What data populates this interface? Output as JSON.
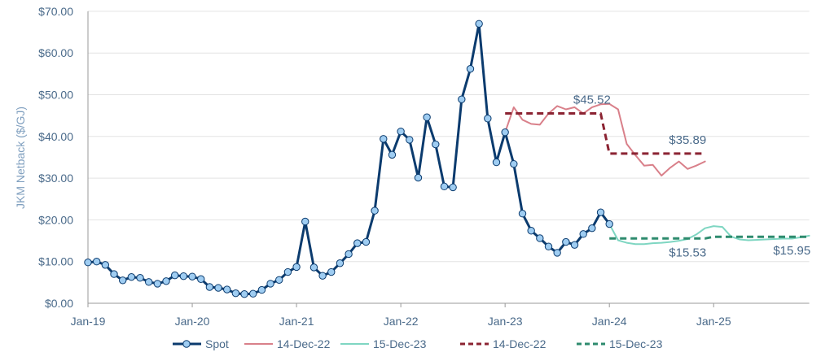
{
  "chart_data": {
    "type": "line",
    "ylabel": "JKM Netback ($/GJ)",
    "ylim": [
      0,
      70
    ],
    "y_ticks": [
      "$0.00",
      "$10.00",
      "$20.00",
      "$30.00",
      "$40.00",
      "$50.00",
      "$60.00",
      "$70.00"
    ],
    "x_ticks": [
      "Jan-19",
      "Jan-20",
      "Jan-21",
      "Jan-22",
      "Jan-23",
      "Jan-24",
      "Jan-25"
    ],
    "x_range": [
      "2019-01",
      "2025-12"
    ],
    "grid": "horizontal",
    "legend_position": "bottom",
    "series": [
      {
        "name": "Spot",
        "color": "#0b3b6e",
        "style": "solid-markers",
        "data": [
          [
            "2019-01",
            9.8
          ],
          [
            "2019-02",
            10.0
          ],
          [
            "2019-03",
            9.2
          ],
          [
            "2019-04",
            7.0
          ],
          [
            "2019-05",
            5.5
          ],
          [
            "2019-06",
            6.3
          ],
          [
            "2019-07",
            6.1
          ],
          [
            "2019-08",
            5.1
          ],
          [
            "2019-09",
            4.7
          ],
          [
            "2019-10",
            5.3
          ],
          [
            "2019-11",
            6.7
          ],
          [
            "2019-12",
            6.5
          ],
          [
            "2020-01",
            6.4
          ],
          [
            "2020-02",
            5.8
          ],
          [
            "2020-03",
            3.9
          ],
          [
            "2020-04",
            3.7
          ],
          [
            "2020-05",
            3.3
          ],
          [
            "2020-06",
            2.4
          ],
          [
            "2020-07",
            2.2
          ],
          [
            "2020-08",
            2.3
          ],
          [
            "2020-09",
            3.2
          ],
          [
            "2020-10",
            4.7
          ],
          [
            "2020-11",
            5.6
          ],
          [
            "2020-12",
            7.5
          ],
          [
            "2021-01",
            8.7
          ],
          [
            "2021-02",
            19.6
          ],
          [
            "2021-03",
            8.6
          ],
          [
            "2021-04",
            6.6
          ],
          [
            "2021-05",
            7.5
          ],
          [
            "2021-06",
            9.6
          ],
          [
            "2021-07",
            11.8
          ],
          [
            "2021-08",
            14.4
          ],
          [
            "2021-09",
            14.7
          ],
          [
            "2021-10",
            22.2
          ],
          [
            "2021-11",
            39.4
          ],
          [
            "2021-12",
            35.6
          ],
          [
            "2022-01",
            41.2
          ],
          [
            "2022-02",
            39.2
          ],
          [
            "2022-03",
            30.1
          ],
          [
            "2022-04",
            44.6
          ],
          [
            "2022-05",
            38.1
          ],
          [
            "2022-06",
            28.0
          ],
          [
            "2022-07",
            27.8
          ],
          [
            "2022-08",
            48.9
          ],
          [
            "2022-09",
            56.2
          ],
          [
            "2022-10",
            67.0
          ],
          [
            "2022-11",
            44.3
          ],
          [
            "2022-12",
            33.8
          ],
          [
            "2023-01",
            41.0
          ],
          [
            "2023-02",
            33.4
          ],
          [
            "2023-03",
            21.5
          ],
          [
            "2023-04",
            17.4
          ],
          [
            "2023-05",
            15.6
          ],
          [
            "2023-06",
            13.6
          ],
          [
            "2023-07",
            12.1
          ],
          [
            "2023-08",
            14.7
          ],
          [
            "2023-09",
            14.0
          ],
          [
            "2023-10",
            16.6
          ],
          [
            "2023-11",
            18.0
          ],
          [
            "2023-12",
            21.8
          ],
          [
            "2024-01",
            19.0
          ]
        ]
      },
      {
        "name": "14-Dec-22",
        "color": "#d9808a",
        "style": "solid",
        "data": [
          [
            "2023-01",
            41.0
          ],
          [
            "2023-02",
            47.0
          ],
          [
            "2023-03",
            44.0
          ],
          [
            "2023-04",
            43.0
          ],
          [
            "2023-05",
            42.8
          ],
          [
            "2023-06",
            45.5
          ],
          [
            "2023-07",
            47.3
          ],
          [
            "2023-08",
            46.5
          ],
          [
            "2023-09",
            47.0
          ],
          [
            "2023-10",
            45.5
          ],
          [
            "2023-11",
            47.0
          ],
          [
            "2023-12",
            47.7
          ],
          [
            "2024-01",
            47.8
          ],
          [
            "2024-02",
            46.5
          ],
          [
            "2024-03",
            38.2
          ],
          [
            "2024-04",
            35.5
          ],
          [
            "2024-05",
            33.0
          ],
          [
            "2024-06",
            33.2
          ],
          [
            "2024-07",
            30.6
          ],
          [
            "2024-08",
            32.5
          ],
          [
            "2024-09",
            34.0
          ],
          [
            "2024-10",
            32.2
          ],
          [
            "2024-11",
            33.0
          ],
          [
            "2024-12",
            34.0
          ]
        ]
      },
      {
        "name": "15-Dec-23",
        "color": "#7fd6c2",
        "style": "solid",
        "data": [
          [
            "2024-01",
            19.0
          ],
          [
            "2024-02",
            15.1
          ],
          [
            "2024-03",
            14.5
          ],
          [
            "2024-04",
            14.2
          ],
          [
            "2024-05",
            14.2
          ],
          [
            "2024-06",
            14.4
          ],
          [
            "2024-07",
            14.5
          ],
          [
            "2024-08",
            14.7
          ],
          [
            "2024-09",
            15.0
          ],
          [
            "2024-10",
            15.4
          ],
          [
            "2024-11",
            16.5
          ],
          [
            "2024-12",
            18.0
          ],
          [
            "2025-01",
            18.5
          ],
          [
            "2025-02",
            18.3
          ],
          [
            "2025-03",
            16.0
          ],
          [
            "2025-04",
            15.3
          ],
          [
            "2025-05",
            15.1
          ],
          [
            "2025-06",
            15.2
          ],
          [
            "2025-07",
            15.3
          ],
          [
            "2025-08",
            15.4
          ],
          [
            "2025-09",
            15.5
          ],
          [
            "2025-10",
            15.5
          ],
          [
            "2025-11",
            15.8
          ],
          [
            "2025-12",
            16.2
          ]
        ]
      },
      {
        "name": "14-Dec-22",
        "color": "#8b2332",
        "style": "dashed",
        "data": [
          [
            "2023-01",
            45.52
          ],
          [
            "2023-12",
            45.52
          ],
          [
            "2024-01",
            35.89
          ],
          [
            "2024-12",
            35.89
          ]
        ]
      },
      {
        "name": "15-Dec-23",
        "color": "#2e8b6e",
        "style": "dashed",
        "data": [
          [
            "2024-01",
            15.53
          ],
          [
            "2024-12",
            15.53
          ],
          [
            "2025-01",
            15.95
          ],
          [
            "2025-12",
            15.95
          ]
        ]
      }
    ],
    "annotations": [
      {
        "text": "$45.52",
        "at": [
          "2023-11",
          45.52
        ]
      },
      {
        "text": "$35.89",
        "at": [
          "2024-10",
          35.89
        ]
      },
      {
        "text": "$15.53",
        "at": [
          "2024-10",
          15.53
        ]
      },
      {
        "text": "$15.95",
        "at": [
          "2025-10",
          15.95
        ]
      }
    ]
  }
}
